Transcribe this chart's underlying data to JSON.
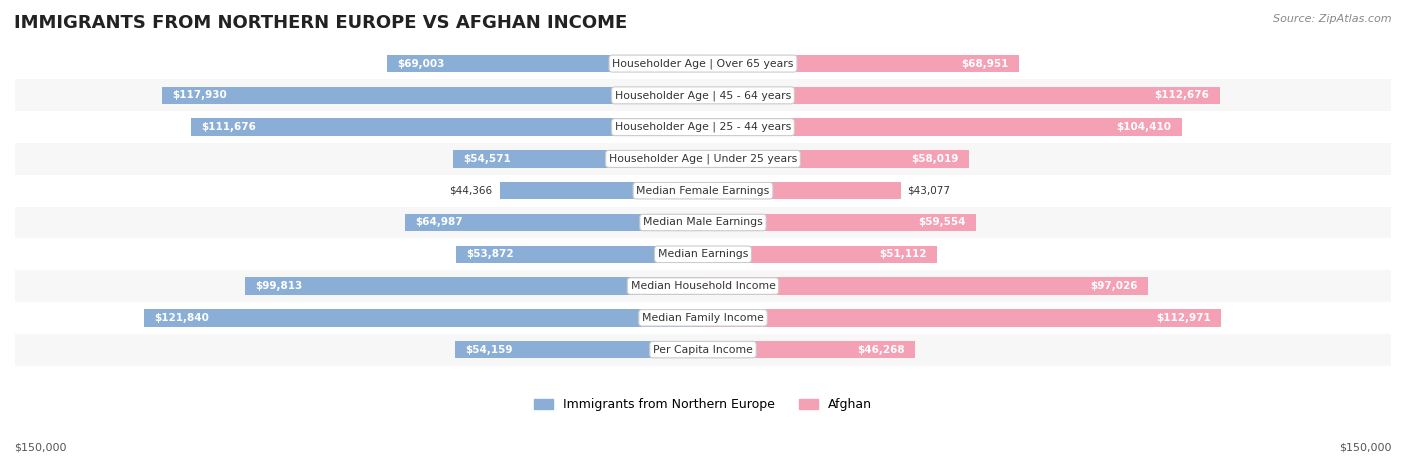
{
  "title": "IMMIGRANTS FROM NORTHERN EUROPE VS AFGHAN INCOME",
  "source": "Source: ZipAtlas.com",
  "categories": [
    "Per Capita Income",
    "Median Family Income",
    "Median Household Income",
    "Median Earnings",
    "Median Male Earnings",
    "Median Female Earnings",
    "Householder Age | Under 25 years",
    "Householder Age | 25 - 44 years",
    "Householder Age | 45 - 64 years",
    "Householder Age | Over 65 years"
  ],
  "northern_europe": [
    54159,
    121840,
    99813,
    53872,
    64987,
    44366,
    54571,
    111676,
    117930,
    69003
  ],
  "afghan": [
    46268,
    112971,
    97026,
    51112,
    59554,
    43077,
    58019,
    104410,
    112676,
    68951
  ],
  "northern_europe_labels": [
    "$54,159",
    "$121,840",
    "$99,813",
    "$53,872",
    "$64,987",
    "$44,366",
    "$54,571",
    "$111,676",
    "$117,930",
    "$69,003"
  ],
  "afghan_labels": [
    "$46,268",
    "$112,971",
    "$97,026",
    "$51,112",
    "$59,554",
    "$43,077",
    "$58,019",
    "$104,410",
    "$112,676",
    "$68,951"
  ],
  "max_val": 150000,
  "color_northern_europe": "#8aaed6",
  "color_northern_europe_dark": "#5b8fc9",
  "color_afghan": "#f4a0b5",
  "color_afghan_dark": "#f06292",
  "color_label_bg": "#f0f0f0",
  "color_row_bg_light": "#f7f7f7",
  "color_row_bg_white": "#ffffff",
  "bar_height": 0.55,
  "legend_ne": "Immigrants from Northern Europe",
  "legend_af": "Afghan",
  "bottom_label_left": "$150,000",
  "bottom_label_right": "$150,000"
}
